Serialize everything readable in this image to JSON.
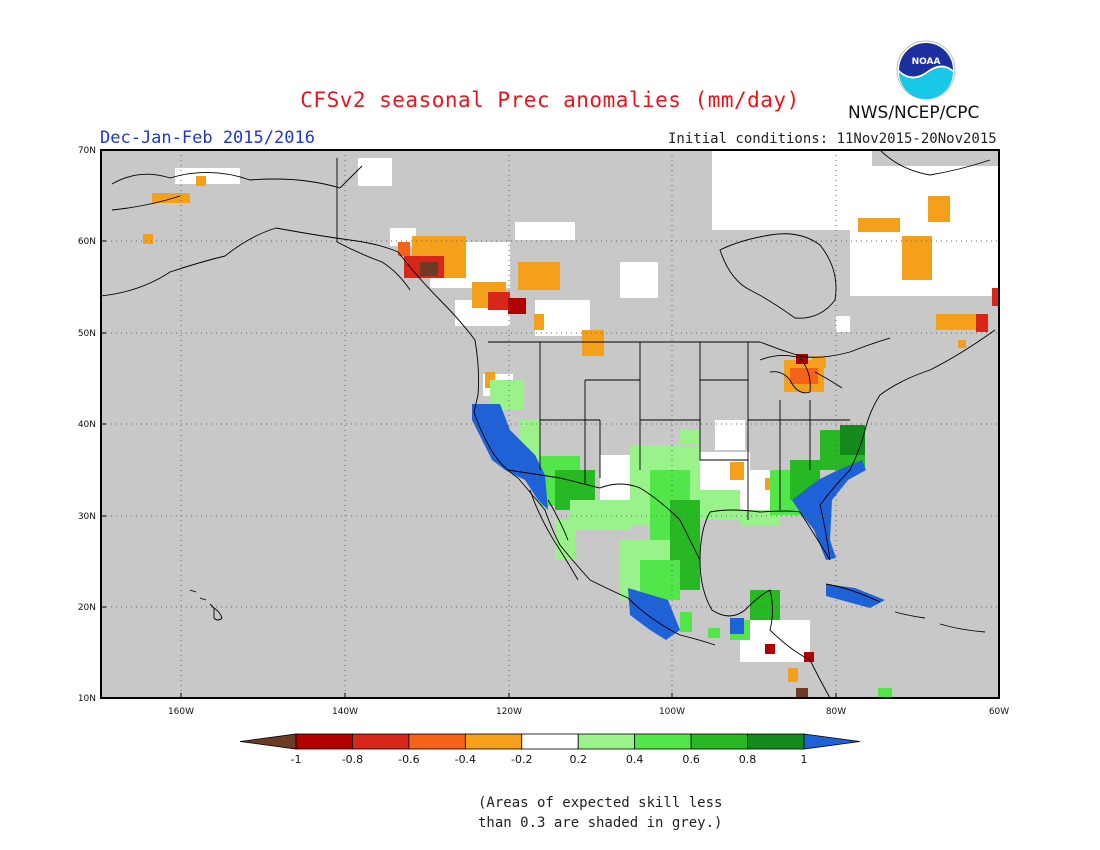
{
  "header": {
    "title": "CFSv2 seasonal Prec anomalies (mm/day)",
    "season": "Dec-Jan-Feb 2015/2016",
    "initial_conditions": "Initial conditions: 11Nov2015-20Nov2015",
    "agency": "NWS/NCEP/CPC",
    "logo_text": "NOAA"
  },
  "map": {
    "lat_labels": [
      "70N",
      "60N",
      "50N",
      "40N",
      "30N",
      "20N",
      "10N"
    ],
    "lon_labels": [
      "160W",
      "140W",
      "120W",
      "100W",
      "80W",
      "60W"
    ],
    "colors": {
      "no_skill": "#c8c8c8",
      "land_ocean_neutral": "#ffffff",
      "border": "#000000"
    }
  },
  "colorbar": {
    "labels": [
      "-1",
      "-0.8",
      "-0.6",
      "-0.4",
      "-0.2",
      "0.2",
      "0.4",
      "0.6",
      "0.8",
      "1"
    ],
    "colors": [
      "#6b3b24",
      "#b00000",
      "#d8261b",
      "#f5631a",
      "#f5a01a",
      "#ffffff",
      "#9af28a",
      "#52e64a",
      "#28b823",
      "#138a1b",
      "#1f62d8"
    ]
  },
  "footnote": {
    "line1": "(Areas of expected skill less",
    "line2": "than 0.3 are shaded in grey.)"
  }
}
